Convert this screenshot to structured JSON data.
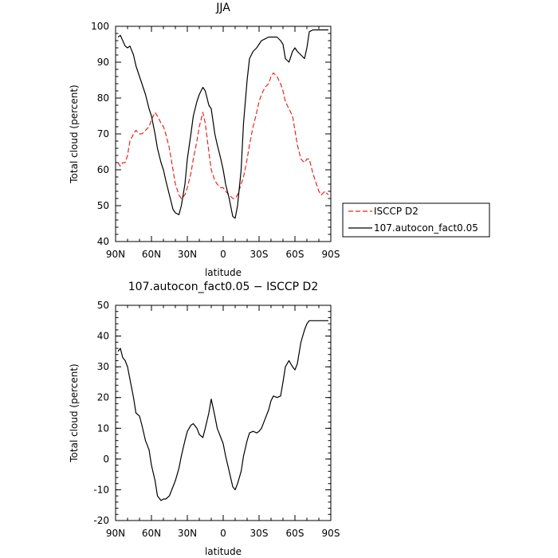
{
  "chart_data": [
    {
      "type": "line",
      "title": "JJA",
      "xlabel": "latitude",
      "ylabel": "Total cloud (percent)",
      "ylim": [
        40,
        100
      ],
      "xlim": [
        90,
        -90
      ],
      "xticks": [
        {
          "value": 90,
          "label": "90N"
        },
        {
          "value": 60,
          "label": "60N"
        },
        {
          "value": 30,
          "label": "30N"
        },
        {
          "value": 0,
          "label": "0"
        },
        {
          "value": -30,
          "label": "30S"
        },
        {
          "value": -60,
          "label": "60S"
        },
        {
          "value": -90,
          "label": "90S"
        }
      ],
      "yticks": [
        40,
        50,
        60,
        70,
        80,
        90,
        100
      ],
      "legend_position": "right",
      "series": [
        {
          "name": "ISCCP D2",
          "color": "#e8261f",
          "dash": "dashed",
          "x": [
            88,
            86,
            84,
            82,
            80,
            78,
            75,
            73,
            70,
            68,
            65,
            62,
            60,
            57,
            55,
            52,
            50,
            48,
            45,
            42,
            40,
            37,
            35,
            32,
            30,
            27,
            25,
            22,
            20,
            17,
            15,
            12,
            10,
            7,
            5,
            2,
            0,
            -2,
            -5,
            -8,
            -10,
            -12,
            -15,
            -17,
            -20,
            -22,
            -25,
            -28,
            -30,
            -32,
            -35,
            -38,
            -40,
            -42,
            -45,
            -48,
            -50,
            -52,
            -55,
            -58,
            -60,
            -62,
            -65,
            -68,
            -70,
            -72,
            -75,
            -78,
            -80,
            -82,
            -85,
            -88
          ],
          "y": [
            62,
            61,
            62,
            62,
            64,
            68,
            70,
            71,
            70,
            70,
            71,
            72,
            74,
            76,
            75,
            73,
            72,
            70,
            66,
            60,
            56,
            53,
            52,
            53,
            55,
            59,
            63,
            68,
            72,
            76,
            73,
            65,
            60,
            57,
            56,
            55,
            55,
            54,
            53,
            52,
            52,
            53,
            56,
            58,
            63,
            67,
            72,
            76,
            79,
            81,
            83,
            84,
            86,
            87,
            86,
            84,
            82,
            79,
            77,
            75,
            71,
            67,
            63,
            62,
            63,
            63,
            59,
            56,
            54,
            53,
            54,
            53
          ]
        },
        {
          "name": "107.autocon_fact0.05",
          "color": "#000000",
          "dash": "solid",
          "x": [
            88,
            86,
            84,
            82,
            80,
            78,
            75,
            73,
            70,
            68,
            65,
            62,
            60,
            57,
            55,
            52,
            50,
            48,
            45,
            42,
            40,
            37,
            35,
            32,
            30,
            27,
            25,
            22,
            20,
            17,
            15,
            12,
            10,
            7,
            5,
            2,
            0,
            -2,
            -5,
            -8,
            -10,
            -12,
            -15,
            -17,
            -20,
            -22,
            -25,
            -28,
            -30,
            -32,
            -35,
            -38,
            -40,
            -42,
            -45,
            -48,
            -50,
            -52,
            -55,
            -58,
            -60,
            -62,
            -65,
            -68,
            -70,
            -72,
            -75,
            -78,
            -80,
            -82,
            -85,
            -88
          ],
          "y": [
            97,
            97.5,
            96,
            94.5,
            94,
            94.5,
            92,
            89,
            86,
            84,
            81,
            77,
            75,
            70,
            66,
            62,
            60,
            57,
            53,
            49,
            48,
            47.5,
            50,
            56,
            63,
            70,
            75,
            79,
            81,
            83,
            82,
            78,
            77,
            70,
            67,
            63,
            60,
            56,
            52,
            47,
            46.5,
            50,
            60,
            73,
            85,
            91,
            93,
            94,
            95,
            96,
            96.5,
            97,
            97,
            97,
            97,
            96,
            95,
            91,
            90,
            93,
            94,
            93,
            92,
            91,
            94,
            98.5,
            99,
            99,
            99,
            99,
            99,
            99
          ]
        }
      ]
    },
    {
      "type": "line",
      "title": "107.autocon_fact0.05 − ISCCP D2",
      "xlabel": "latitude",
      "ylabel": "Total cloud (percent)",
      "ylim": [
        -20,
        50
      ],
      "xlim": [
        90,
        -90
      ],
      "xticks": [
        {
          "value": 90,
          "label": "90N"
        },
        {
          "value": 60,
          "label": "60N"
        },
        {
          "value": 30,
          "label": "30N"
        },
        {
          "value": 0,
          "label": "0"
        },
        {
          "value": -30,
          "label": "30S"
        },
        {
          "value": -60,
          "label": "60S"
        },
        {
          "value": -90,
          "label": "90S"
        }
      ],
      "yticks": [
        -20,
        -10,
        0,
        10,
        20,
        30,
        40,
        50
      ],
      "series": [
        {
          "color": "#000000",
          "dash": "solid",
          "x": [
            88,
            86,
            84,
            82,
            80,
            78,
            75,
            73,
            70,
            68,
            65,
            62,
            60,
            57,
            55,
            52,
            50,
            48,
            45,
            42,
            40,
            37,
            35,
            32,
            30,
            27,
            25,
            22,
            20,
            17,
            15,
            12,
            10,
            7,
            5,
            2,
            0,
            -2,
            -5,
            -8,
            -10,
            -12,
            -15,
            -17,
            -20,
            -22,
            -25,
            -28,
            -30,
            -32,
            -35,
            -38,
            -40,
            -42,
            -45,
            -48,
            -50,
            -52,
            -55,
            -58,
            -60,
            -62,
            -65,
            -68,
            -70,
            -72,
            -75,
            -78,
            -80,
            -82,
            -85,
            -88
          ],
          "y": [
            35,
            36,
            33,
            32,
            30,
            26,
            20,
            15,
            14,
            11,
            6,
            3,
            -2,
            -7,
            -12,
            -13.5,
            -13,
            -13,
            -12,
            -9,
            -7,
            -3,
            1,
            6,
            9,
            11,
            11.5,
            10,
            8,
            7,
            10,
            15,
            19.5,
            14,
            10,
            7,
            5,
            1,
            -4,
            -9,
            -10,
            -8,
            -4,
            1,
            6,
            8.5,
            9,
            8.5,
            9,
            10,
            13,
            16,
            19,
            20.5,
            20,
            20.5,
            25,
            30,
            32,
            30,
            29,
            31,
            38,
            42,
            44,
            45,
            45,
            45,
            45,
            45,
            45,
            45
          ]
        }
      ]
    }
  ]
}
